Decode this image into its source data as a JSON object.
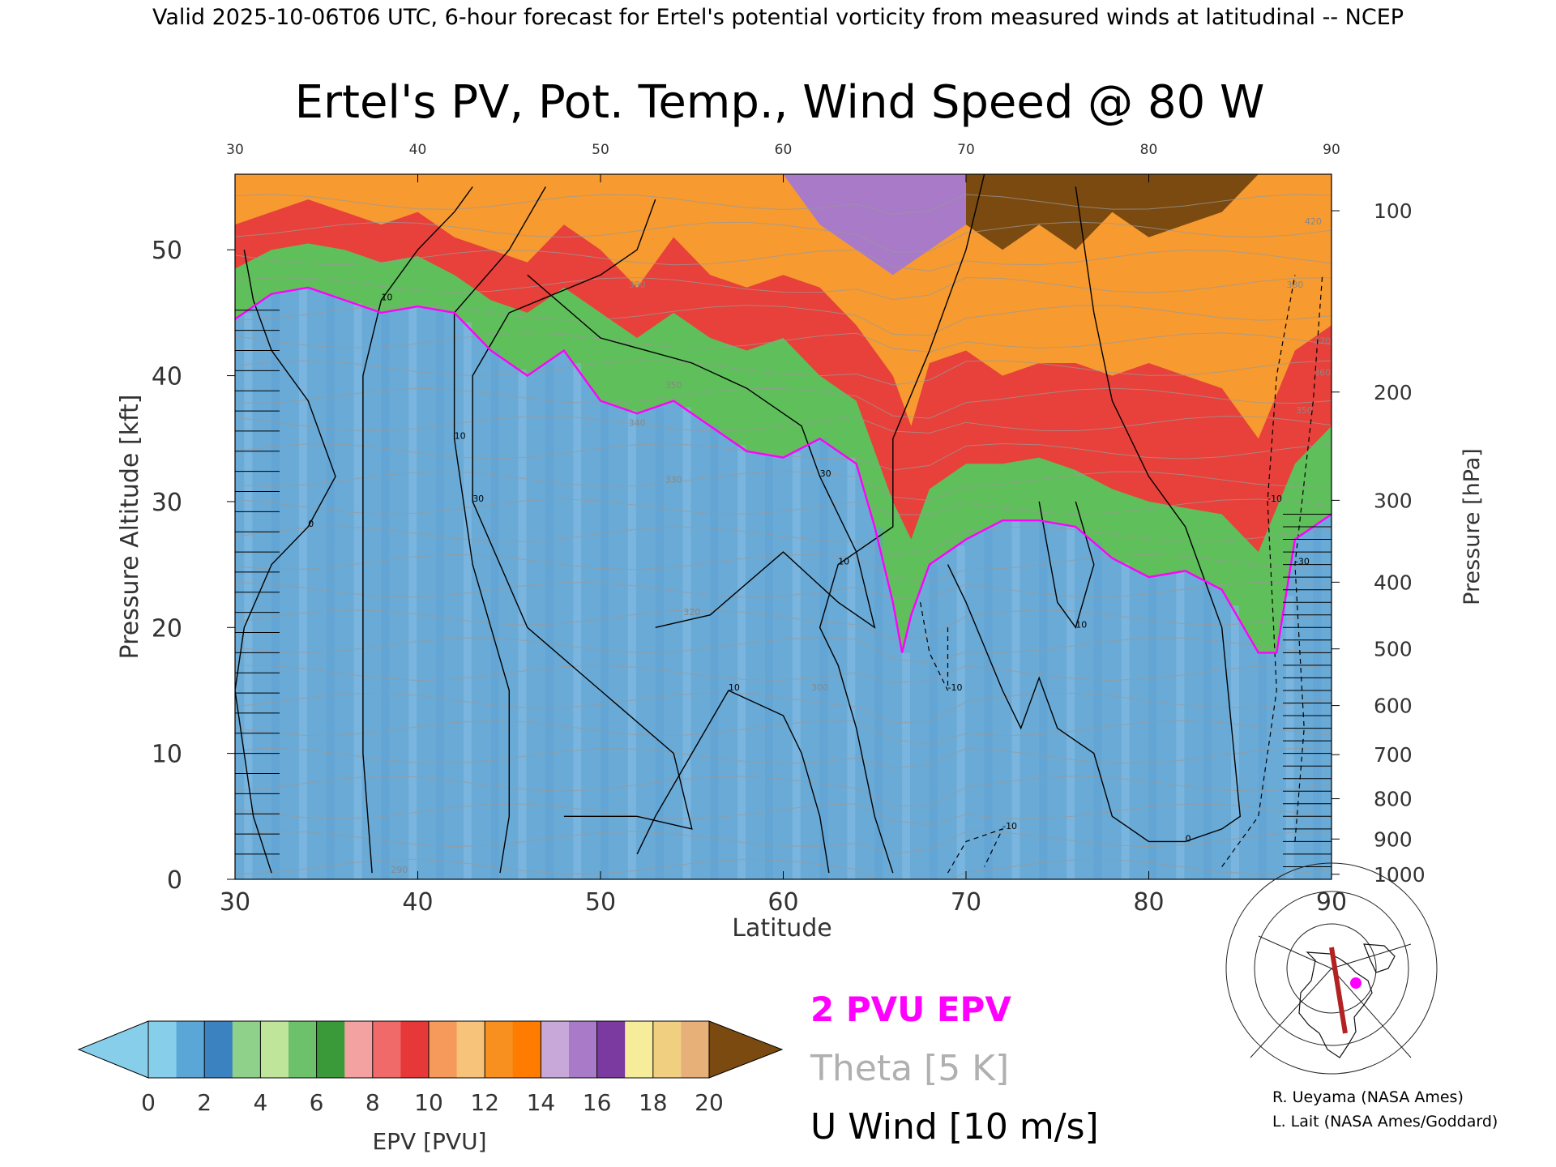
{
  "header": {
    "valid_line": "Valid 2025-10-06T06 UTC, 6-hour forecast for Ertel's potential vorticity from measured winds at latitudinal -- NCEP"
  },
  "chart_data": {
    "type": "heatmap",
    "title": "Ertel's PV, Pot. Temp., Wind Speed @ 80 W",
    "xlabel": "Latitude",
    "ylabel_left": "Pressure Altitude [kft]",
    "ylabel_right": "Pressure [hPa]",
    "xlim": [
      30,
      90
    ],
    "ylim_kft": [
      0,
      56
    ],
    "x_ticks_bottom": [
      "30",
      "40",
      "50",
      "60",
      "70",
      "80",
      "90"
    ],
    "x_ticks_top": [
      "30",
      "40",
      "50",
      "60",
      "70",
      "80",
      "90"
    ],
    "y_ticks_left": [
      "0",
      "10",
      "20",
      "30",
      "40",
      "50"
    ],
    "y_ticks_right": [
      {
        "label": "100",
        "kft": 53.1
      },
      {
        "label": "200",
        "kft": 38.7
      },
      {
        "label": "300",
        "kft": 30.1
      },
      {
        "label": "400",
        "kft": 23.6
      },
      {
        "label": "500",
        "kft": 18.3
      },
      {
        "label": "600",
        "kft": 13.8
      },
      {
        "label": "700",
        "kft": 9.9
      },
      {
        "label": "800",
        "kft": 6.4
      },
      {
        "label": "900",
        "kft": 3.2
      },
      {
        "label": "1000",
        "kft": 0.4
      }
    ],
    "pv_boundary_2pvu_kft": [
      [
        30,
        44.5
      ],
      [
        32,
        46.5
      ],
      [
        34,
        47.0
      ],
      [
        36,
        46.0
      ],
      [
        38,
        45.0
      ],
      [
        40,
        45.5
      ],
      [
        42,
        45.0
      ],
      [
        44,
        42.0
      ],
      [
        46,
        40.0
      ],
      [
        48,
        42.0
      ],
      [
        50,
        38.0
      ],
      [
        52,
        37.0
      ],
      [
        54,
        38.0
      ],
      [
        56,
        36.0
      ],
      [
        58,
        34.0
      ],
      [
        60,
        33.5
      ],
      [
        62,
        35.0
      ],
      [
        64,
        33.0
      ],
      [
        65,
        28.0
      ],
      [
        66,
        22.0
      ],
      [
        66.5,
        18.0
      ],
      [
        67,
        21.0
      ],
      [
        68,
        25.0
      ],
      [
        70,
        27.0
      ],
      [
        72,
        28.5
      ],
      [
        74,
        28.5
      ],
      [
        76,
        28.0
      ],
      [
        78,
        25.5
      ],
      [
        80,
        24.0
      ],
      [
        82,
        24.5
      ],
      [
        84,
        23.0
      ],
      [
        86,
        18.0
      ],
      [
        87,
        18.0
      ],
      [
        88,
        27.0
      ],
      [
        90,
        29.0
      ]
    ],
    "pv_mid_band_kft": [
      [
        30,
        48.5
      ],
      [
        32,
        50.0
      ],
      [
        34,
        50.5
      ],
      [
        36,
        50.0
      ],
      [
        38,
        49.0
      ],
      [
        40,
        49.5
      ],
      [
        42,
        48.0
      ],
      [
        44,
        46.0
      ],
      [
        46,
        45.0
      ],
      [
        48,
        47.0
      ],
      [
        50,
        45.0
      ],
      [
        52,
        43.0
      ],
      [
        54,
        45.0
      ],
      [
        56,
        43.0
      ],
      [
        58,
        42.0
      ],
      [
        60,
        43.0
      ],
      [
        62,
        40.0
      ],
      [
        64,
        38.0
      ],
      [
        66,
        30.0
      ],
      [
        67,
        27.0
      ],
      [
        68,
        31.0
      ],
      [
        70,
        33.0
      ],
      [
        72,
        33.0
      ],
      [
        74,
        33.5
      ],
      [
        76,
        32.5
      ],
      [
        78,
        31.0
      ],
      [
        80,
        30.0
      ],
      [
        82,
        29.5
      ],
      [
        84,
        29.0
      ],
      [
        86,
        26.0
      ],
      [
        88,
        33.0
      ],
      [
        90,
        36.0
      ]
    ],
    "pv_high_band_kft": [
      [
        30,
        52.0
      ],
      [
        32,
        53.0
      ],
      [
        34,
        54.0
      ],
      [
        36,
        53.0
      ],
      [
        38,
        52.0
      ],
      [
        40,
        53.0
      ],
      [
        42,
        51.0
      ],
      [
        44,
        50.0
      ],
      [
        46,
        49.0
      ],
      [
        48,
        52.0
      ],
      [
        50,
        50.0
      ],
      [
        52,
        47.0
      ],
      [
        54,
        51.0
      ],
      [
        56,
        48.0
      ],
      [
        58,
        47.0
      ],
      [
        60,
        48.0
      ],
      [
        62,
        47.0
      ],
      [
        64,
        44.0
      ],
      [
        66,
        40.0
      ],
      [
        67,
        36.0
      ],
      [
        68,
        41.0
      ],
      [
        70,
        42.0
      ],
      [
        72,
        40.0
      ],
      [
        74,
        41.0
      ],
      [
        76,
        41.0
      ],
      [
        78,
        40.0
      ],
      [
        80,
        41.0
      ],
      [
        82,
        40.0
      ],
      [
        84,
        39.0
      ],
      [
        86,
        35.0
      ],
      [
        88,
        42.0
      ],
      [
        90,
        44.0
      ]
    ],
    "theta_labels": [
      {
        "label": "380",
        "lat": 52.0,
        "kft": 47.0
      },
      {
        "label": "350",
        "lat": 54.0,
        "kft": 39.0
      },
      {
        "label": "340",
        "lat": 52.0,
        "kft": 36.0
      },
      {
        "label": "330",
        "lat": 54.0,
        "kft": 31.5
      },
      {
        "label": "320",
        "lat": 55.0,
        "kft": 21.0
      },
      {
        "label": "300",
        "lat": 62.0,
        "kft": 15.0
      },
      {
        "label": "290",
        "lat": 39.0,
        "kft": 0.5
      },
      {
        "label": "420",
        "lat": 89.0,
        "kft": 52.0
      },
      {
        "label": "380",
        "lat": 88.0,
        "kft": 47.0
      },
      {
        "label": "370",
        "lat": 89.5,
        "kft": 42.5
      },
      {
        "label": "360",
        "lat": 89.5,
        "kft": 40.0
      },
      {
        "label": "350",
        "lat": 88.5,
        "kft": 37.0
      }
    ],
    "u_wind_contours": [
      {
        "label": "10",
        "points": [
          [
            37.5,
            0.5
          ],
          [
            37,
            10
          ],
          [
            37,
            25
          ],
          [
            37,
            40
          ],
          [
            38,
            46
          ],
          [
            40,
            50
          ],
          [
            42,
            53
          ],
          [
            43,
            55
          ]
        ]
      },
      {
        "label": "10",
        "points": [
          [
            44.5,
            0.5
          ],
          [
            45,
            5
          ],
          [
            45,
            15
          ],
          [
            43,
            25
          ],
          [
            42,
            35
          ],
          [
            42,
            45
          ],
          [
            45,
            50
          ],
          [
            47,
            55
          ]
        ]
      },
      {
        "label": "30",
        "points": [
          [
            48,
            5
          ],
          [
            52,
            5
          ],
          [
            55,
            4
          ],
          [
            54,
            10
          ],
          [
            50,
            15
          ],
          [
            46,
            20
          ],
          [
            43,
            30
          ],
          [
            43,
            40
          ],
          [
            45,
            45
          ],
          [
            50,
            48
          ],
          [
            52,
            50
          ],
          [
            53,
            54
          ]
        ]
      },
      {
        "label": "30",
        "points": [
          [
            53,
            20
          ],
          [
            56,
            21
          ],
          [
            60,
            26
          ],
          [
            63,
            22
          ],
          [
            65,
            20
          ],
          [
            64,
            26
          ],
          [
            62,
            32
          ],
          [
            61,
            36
          ],
          [
            58,
            39
          ],
          [
            55,
            41
          ],
          [
            50,
            43
          ],
          [
            46,
            48
          ]
        ]
      },
      {
        "label": "10",
        "points": [
          [
            62.5,
            0.5
          ],
          [
            62,
            5
          ],
          [
            61,
            10
          ],
          [
            60,
            13
          ],
          [
            57,
            15
          ],
          [
            55,
            10
          ],
          [
            53,
            5
          ],
          [
            52,
            2
          ]
        ]
      },
      {
        "label": "10",
        "points": [
          [
            66,
            0.5
          ],
          [
            65,
            5
          ],
          [
            64,
            12
          ],
          [
            63,
            17
          ],
          [
            62,
            20
          ],
          [
            63,
            25
          ],
          [
            66,
            28
          ],
          [
            66,
            35
          ],
          [
            68,
            42
          ],
          [
            70,
            50
          ],
          [
            71,
            56
          ]
        ]
      },
      {
        "label": "0",
        "points": [
          [
            69,
            25
          ],
          [
            70,
            22
          ],
          [
            72,
            15
          ],
          [
            73,
            12
          ],
          [
            74,
            16
          ],
          [
            75,
            12
          ],
          [
            77,
            10
          ],
          [
            78,
            5
          ],
          [
            80,
            3
          ],
          [
            82,
            3
          ],
          [
            84,
            4
          ],
          [
            85,
            5
          ],
          [
            84,
            20
          ],
          [
            82,
            28
          ],
          [
            80,
            32
          ],
          [
            78,
            38
          ],
          [
            77,
            45
          ],
          [
            76,
            55
          ]
        ]
      },
      {
        "label": "10",
        "points": [
          [
            74,
            30
          ],
          [
            75,
            22
          ],
          [
            76,
            20
          ],
          [
            77,
            25
          ],
          [
            76,
            30
          ]
        ]
      },
      {
        "label": "0",
        "points": [
          [
            32,
            0.5
          ],
          [
            31,
            5
          ],
          [
            30,
            15
          ],
          [
            30.5,
            20
          ],
          [
            32,
            25
          ],
          [
            34,
            28
          ],
          [
            35.5,
            32
          ],
          [
            34,
            38
          ],
          [
            32,
            42
          ],
          [
            31,
            46
          ],
          [
            30.5,
            50
          ]
        ]
      }
    ],
    "u_wind_dashed": [
      {
        "label": "-10",
        "points": [
          [
            67.5,
            22
          ],
          [
            68,
            18
          ],
          [
            69,
            15
          ],
          [
            69,
            20
          ]
        ]
      },
      {
        "label": "-10",
        "points": [
          [
            69,
            0.5
          ],
          [
            70,
            3
          ],
          [
            72,
            4
          ],
          [
            71,
            1
          ]
        ]
      },
      {
        "label": "-10",
        "points": [
          [
            84,
            1
          ],
          [
            86,
            5
          ],
          [
            87,
            15
          ],
          [
            86.5,
            30
          ],
          [
            87,
            40
          ],
          [
            88,
            48
          ]
        ]
      },
      {
        "label": "-30",
        "points": [
          [
            88,
            3
          ],
          [
            88.5,
            12
          ],
          [
            88,
            25
          ],
          [
            89,
            38
          ],
          [
            89.5,
            48
          ]
        ]
      }
    ],
    "colorbar": {
      "label": "EPV [PVU]",
      "ticks": [
        "0",
        "2",
        "4",
        "6",
        "8",
        "10",
        "12",
        "14",
        "16",
        "18",
        "20"
      ],
      "colors": [
        "#87ceeb",
        "#5aa6d6",
        "#3a82c0",
        "#8fd08a",
        "#bfe59a",
        "#6cc16a",
        "#3a9a3a",
        "#f4a1a1",
        "#f06a6a",
        "#e63838",
        "#f59a5a",
        "#f7c27a",
        "#f7901e",
        "#ff7c00",
        "#c8a8d8",
        "#a87ac8",
        "#7a3aa0",
        "#f7ec9a",
        "#f0d080",
        "#e6b078"
      ],
      "under_color": "#87ceeb",
      "over_color": "#7a4a10"
    }
  },
  "legend": {
    "pv_line": "2 PVU EPV",
    "theta_line": "Theta [5 K]",
    "wind_line": "U Wind [10 m/s]"
  },
  "credits": {
    "line1": "R. Ueyama (NASA Ames)",
    "line2": "L. Lait (NASA Ames/Goddard)"
  },
  "colors": {
    "pv_contour": "#ff00ff",
    "theta_contour": "#999999",
    "wind_contour": "#000000",
    "map_marker": "#ff00ff",
    "map_track": "#b22222"
  }
}
